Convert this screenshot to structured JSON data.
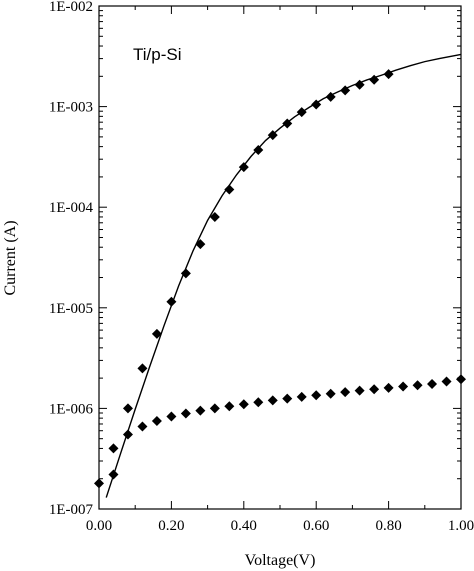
{
  "chart_data": {
    "type": "scatter",
    "annotation": "Ti/p-Si",
    "xlabel": "Voltage(V)",
    "ylabel": "Current (A)",
    "xlim": [
      0.0,
      1.0
    ],
    "ylim": [
      1e-07,
      0.01
    ],
    "yscale": "log",
    "grid": false,
    "legend": "none",
    "x_tick_labels": [
      {
        "value": 0.0,
        "label": "0.00"
      },
      {
        "value": 0.2,
        "label": "0.20"
      },
      {
        "value": 0.4,
        "label": "0.40"
      },
      {
        "value": 0.6,
        "label": "0.60"
      },
      {
        "value": 0.8,
        "label": "0.80"
      },
      {
        "value": 1.0,
        "label": "1.00"
      }
    ],
    "y_tick_labels": [
      {
        "value": 1e-07,
        "label": "1E-007"
      },
      {
        "value": 1e-06,
        "label": "1E-006"
      },
      {
        "value": 1e-05,
        "label": "1E-005"
      },
      {
        "value": 0.0001,
        "label": "1E-004"
      },
      {
        "value": 0.001,
        "label": "1E-003"
      },
      {
        "value": 0.01,
        "label": "1E-002"
      }
    ],
    "series": [
      {
        "marker": "diamond",
        "color": "#000000",
        "points": [
          [
            0.0,
            1.8e-07
          ],
          [
            0.04,
            4e-07
          ],
          [
            0.08,
            1e-06
          ],
          [
            0.12,
            2.5e-06
          ],
          [
            0.16,
            5.5e-06
          ],
          [
            0.2,
            1.15e-05
          ],
          [
            0.24,
            2.2e-05
          ],
          [
            0.28,
            4.3e-05
          ],
          [
            0.32,
            8e-05
          ],
          [
            0.36,
            0.00015
          ],
          [
            0.4,
            0.00025
          ],
          [
            0.44,
            0.00037
          ],
          [
            0.48,
            0.00052
          ],
          [
            0.52,
            0.00068
          ],
          [
            0.56,
            0.00088
          ],
          [
            0.6,
            0.00105
          ],
          [
            0.64,
            0.00125
          ],
          [
            0.68,
            0.00145
          ],
          [
            0.72,
            0.00165
          ],
          [
            0.76,
            0.00185
          ],
          [
            0.8,
            0.0021
          ]
        ]
      },
      {
        "marker": "diamond",
        "color": "#000000",
        "points": [
          [
            0.04,
            2.2e-07
          ],
          [
            0.08,
            5.5e-07
          ],
          [
            0.12,
            6.6e-07
          ],
          [
            0.16,
            7.5e-07
          ],
          [
            0.2,
            8.3e-07
          ],
          [
            0.24,
            8.9e-07
          ],
          [
            0.28,
            9.5e-07
          ],
          [
            0.32,
            1e-06
          ],
          [
            0.36,
            1.05e-06
          ],
          [
            0.4,
            1.1e-06
          ],
          [
            0.44,
            1.15e-06
          ],
          [
            0.48,
            1.2e-06
          ],
          [
            0.52,
            1.25e-06
          ],
          [
            0.56,
            1.3e-06
          ],
          [
            0.6,
            1.35e-06
          ],
          [
            0.64,
            1.4e-06
          ],
          [
            0.68,
            1.45e-06
          ],
          [
            0.72,
            1.5e-06
          ],
          [
            0.76,
            1.55e-06
          ],
          [
            0.8,
            1.6e-06
          ],
          [
            0.84,
            1.65e-06
          ],
          [
            0.88,
            1.7e-06
          ],
          [
            0.92,
            1.75e-06
          ],
          [
            0.96,
            1.85e-06
          ],
          [
            1.0,
            1.95e-06
          ]
        ]
      },
      {
        "marker": "none",
        "line": "solid",
        "color": "#000000",
        "points": [
          [
            0.02,
            1.3e-07
          ],
          [
            0.06,
            3.6e-07
          ],
          [
            0.1,
            9.8e-07
          ],
          [
            0.14,
            2.6e-06
          ],
          [
            0.18,
            6.7e-06
          ],
          [
            0.22,
            1.65e-05
          ],
          [
            0.26,
            3.7e-05
          ],
          [
            0.3,
            7.4e-05
          ],
          [
            0.34,
            0.00013
          ],
          [
            0.38,
            0.00021
          ],
          [
            0.42,
            0.00032
          ],
          [
            0.46,
            0.00046
          ],
          [
            0.5,
            0.00061
          ],
          [
            0.54,
            0.00079
          ],
          [
            0.58,
            0.00098
          ],
          [
            0.62,
            0.0012
          ],
          [
            0.66,
            0.0014
          ],
          [
            0.7,
            0.00162
          ],
          [
            0.74,
            0.00184
          ],
          [
            0.78,
            0.00205
          ],
          [
            0.82,
            0.0023
          ],
          [
            0.86,
            0.00255
          ],
          [
            0.9,
            0.0028
          ],
          [
            0.94,
            0.003
          ],
          [
            0.98,
            0.0032
          ],
          [
            1.0,
            0.0033
          ]
        ]
      }
    ]
  }
}
